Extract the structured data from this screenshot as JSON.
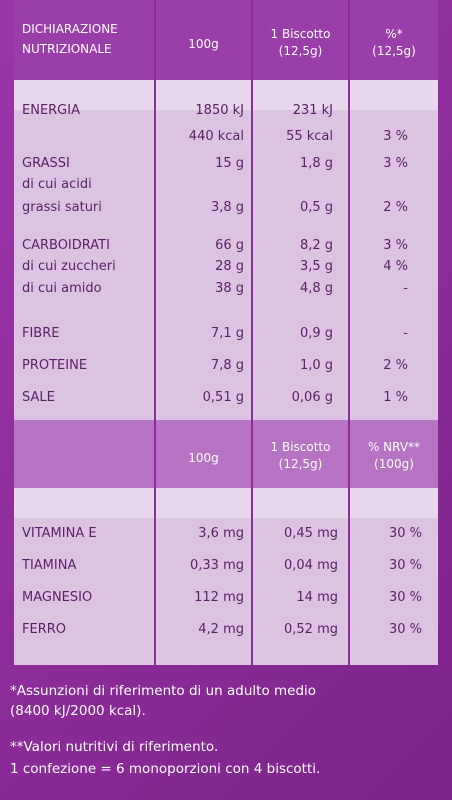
{
  "header": {
    "col1_line1": "DICHIARAZIONE",
    "col1_line2": "NUTRIZIONALE",
    "col2": "100g",
    "col3_line1": "1 Biscotto",
    "col3_line2": "(12,5g)",
    "col4_line1": "%*",
    "col4_line2": "(12,5g)"
  },
  "rows": [
    {
      "label": "ENERGIA",
      "v100": "1850 kJ",
      "vb": "231 kJ",
      "pct": ""
    },
    {
      "label": "",
      "v100": "440 kcal",
      "vb": "55 kcal",
      "pct": "3 %"
    },
    {
      "label": "GRASSI",
      "v100": "15 g",
      "vb": "1,8 g",
      "pct": "3 %"
    },
    {
      "label": "di cui acidi",
      "v100": "",
      "vb": "",
      "pct": ""
    },
    {
      "label": "grassi saturi",
      "v100": "3,8 g",
      "vb": "0,5 g",
      "pct": "2 %"
    },
    {
      "label": "CARBOIDRATI",
      "v100": "66 g",
      "vb": "8,2 g",
      "pct": "3 %"
    },
    {
      "label": "di cui zuccheri",
      "v100": "28 g",
      "vb": "3,5 g",
      "pct": "4 %"
    },
    {
      "label": "di cui amido",
      "v100": "38 g",
      "vb": "4,8 g",
      "pct": "-"
    },
    {
      "label": "FIBRE",
      "v100": "7,1 g",
      "vb": "0,9 g",
      "pct": "-"
    },
    {
      "label": "PROTEINE",
      "v100": "7,8 g",
      "vb": "1,0 g",
      "pct": "2 %"
    },
    {
      "label": "SALE",
      "v100": "0,51 g",
      "vb": "0,06 g",
      "pct": "1 %"
    }
  ],
  "header2": {
    "col2": "100g",
    "col3_line1": "1 Biscotto",
    "col3_line2": "(12,5g)",
    "col4_line1": "% NRV**",
    "col4_line2": "(100g)"
  },
  "vitamins": [
    {
      "label": "VITAMINA E",
      "v100": "3,6 mg",
      "vb": "0,45 mg",
      "pct": "30 %"
    },
    {
      "label": "TIAMINA",
      "v100": "0,33 mg",
      "vb": "0,04 mg",
      "pct": "30 %"
    },
    {
      "label": "MAGNESIO",
      "v100": "112 mg",
      "vb": "14 mg",
      "pct": "30 %"
    },
    {
      "label": "FERRO",
      "v100": "4,2 mg",
      "vb": "0,52 mg",
      "pct": "30 %"
    }
  ],
  "footnotes": {
    "line1": "*Assunzioni di riferimento di un adulto medio",
    "line2": "(8400 kJ/2000 kcal).",
    "line3": "**Valori nutritivi di riferimento.",
    "line4": "1 confezione = 6 monoporzioni con 4 biscotti."
  }
}
